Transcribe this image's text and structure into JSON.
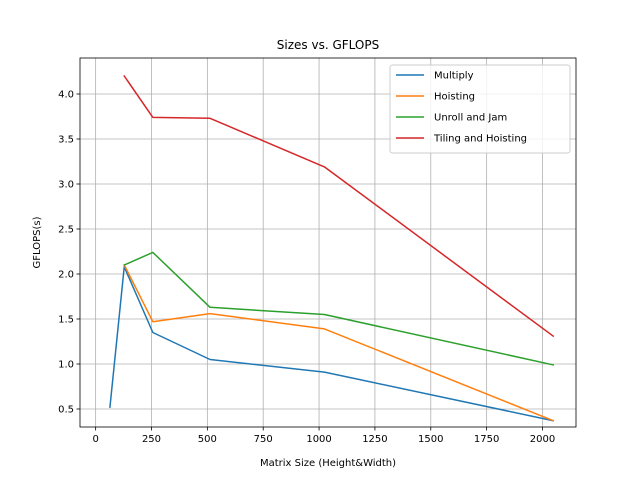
{
  "chart_data": {
    "type": "line",
    "title": "Sizes vs. GFLOPS",
    "xlabel": "Matrix Size (Height&Width)",
    "ylabel": "GFLOPS(s)",
    "xlim": [
      -70,
      2150
    ],
    "ylim": [
      0.3,
      4.4
    ],
    "xticks": [
      0,
      250,
      500,
      750,
      1000,
      1250,
      1500,
      1750,
      2000
    ],
    "yticks": [
      0.5,
      1.0,
      1.5,
      2.0,
      2.5,
      3.0,
      3.5,
      4.0
    ],
    "xtick_labels": [
      "0",
      "250",
      "500",
      "750",
      "1000",
      "1250",
      "1500",
      "1750",
      "2000"
    ],
    "ytick_labels": [
      "0.5",
      "1.0",
      "1.5",
      "2.0",
      "2.5",
      "3.0",
      "3.5",
      "4.0"
    ],
    "grid": true,
    "legend_position": "top-right",
    "series": [
      {
        "name": "Multiply",
        "color": "#1f77b4",
        "x": [
          64,
          128,
          256,
          512,
          1024,
          2048
        ],
        "y": [
          0.52,
          2.08,
          1.35,
          1.05,
          0.91,
          0.37
        ]
      },
      {
        "name": "Hoisting",
        "color": "#ff7f0e",
        "x": [
          128,
          256,
          512,
          1024,
          2048
        ],
        "y": [
          2.1,
          1.47,
          1.56,
          1.39,
          0.37
        ]
      },
      {
        "name": "Unroll and Jam",
        "color": "#2ca02c",
        "x": [
          128,
          256,
          512,
          1024,
          2048
        ],
        "y": [
          2.1,
          2.24,
          1.63,
          1.55,
          0.99
        ]
      },
      {
        "name": "Tiling and Hoisting",
        "color": "#d62728",
        "x": [
          128,
          256,
          512,
          1024,
          2048
        ],
        "y": [
          4.2,
          3.74,
          3.73,
          3.19,
          1.31
        ]
      }
    ]
  }
}
